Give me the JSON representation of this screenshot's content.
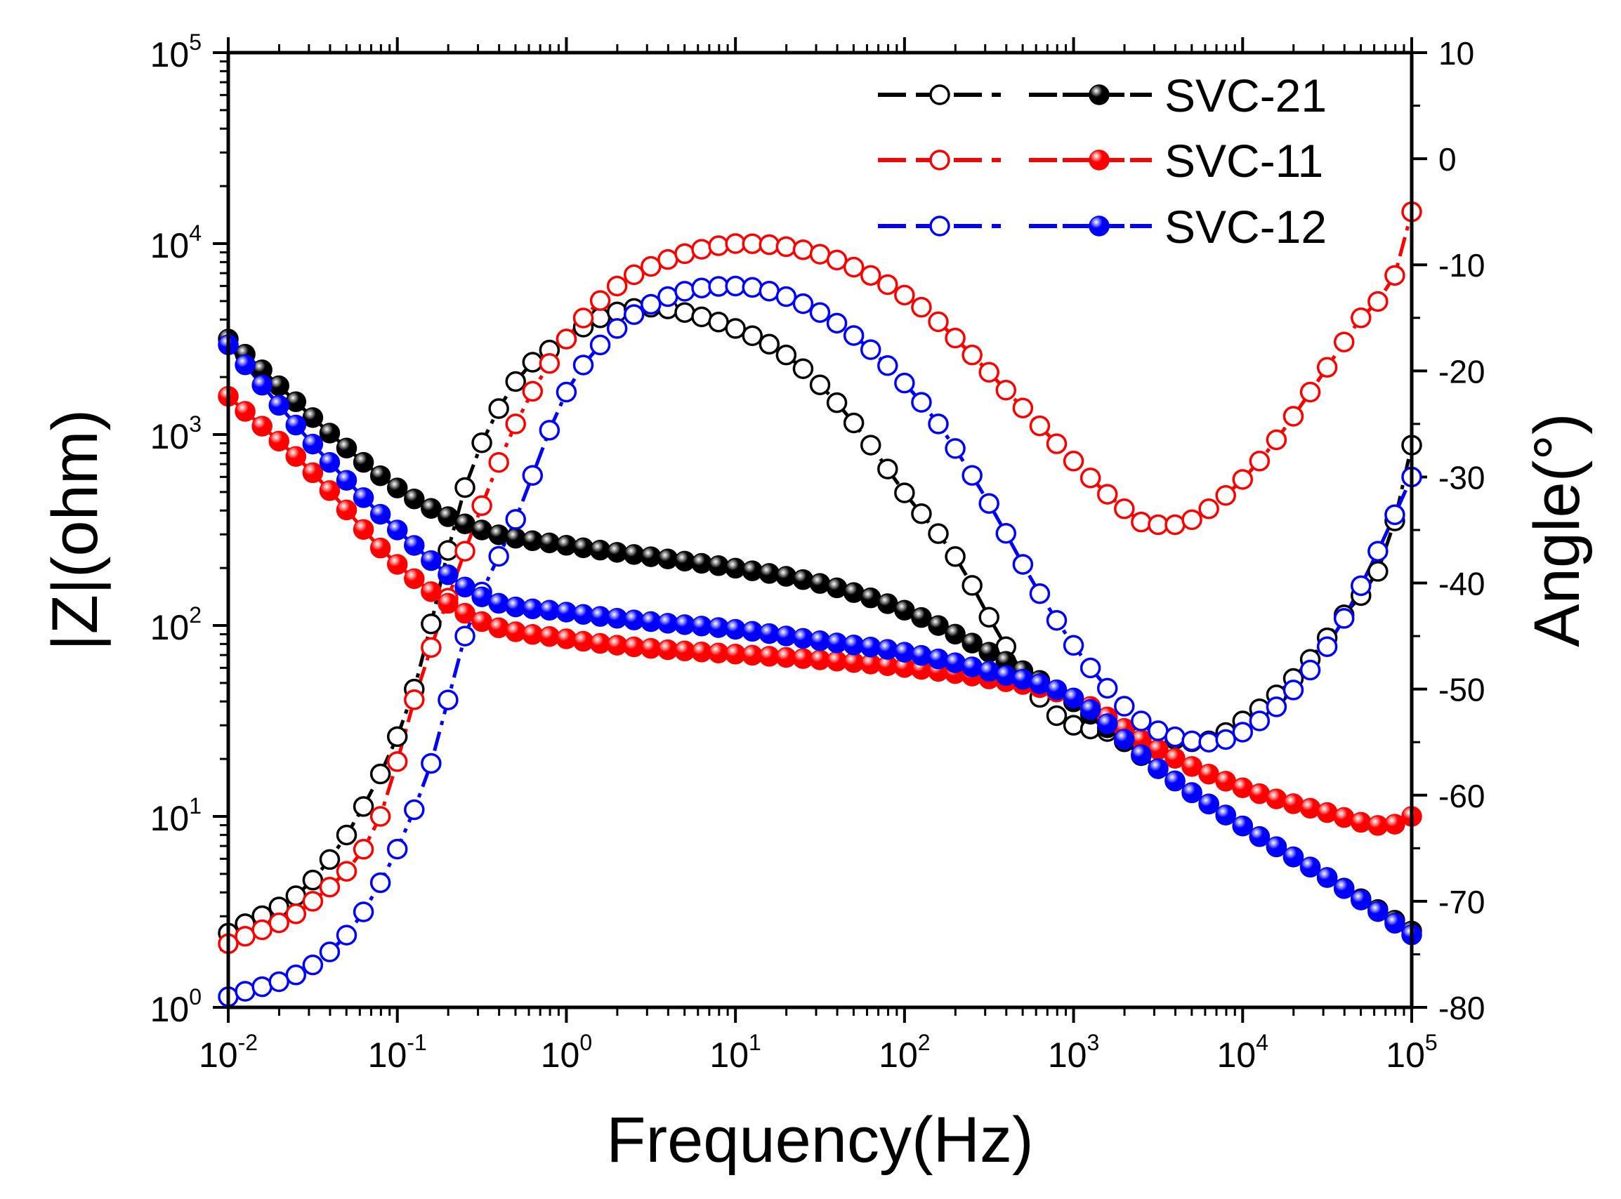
{
  "chart_data": {
    "type": "line",
    "title": "",
    "xlabel": "Frequency(Hz)",
    "ylabel_left": "|Z|(ohm)",
    "ylabel_right": "Angle(°)",
    "x_scale": "log",
    "y_left_scale": "log",
    "xlim": [
      0.01,
      100000
    ],
    "ylim_left": [
      1,
      100000
    ],
    "ylim_right": [
      -80,
      10
    ],
    "x_ticks": [
      {
        "value": 0.01,
        "base": "10",
        "exp": "-2"
      },
      {
        "value": 0.1,
        "base": "10",
        "exp": "-1"
      },
      {
        "value": 1,
        "base": "10",
        "exp": "0"
      },
      {
        "value": 10,
        "base": "10",
        "exp": "1"
      },
      {
        "value": 100,
        "base": "10",
        "exp": "2"
      },
      {
        "value": 1000,
        "base": "10",
        "exp": "3"
      },
      {
        "value": 10000,
        "base": "10",
        "exp": "4"
      },
      {
        "value": 100000,
        "base": "10",
        "exp": "5"
      }
    ],
    "y_left_ticks": [
      {
        "value": 1,
        "base": "10",
        "exp": "0"
      },
      {
        "value": 10,
        "base": "10",
        "exp": "1"
      },
      {
        "value": 100,
        "base": "10",
        "exp": "2"
      },
      {
        "value": 1000,
        "base": "10",
        "exp": "3"
      },
      {
        "value": 10000,
        "base": "10",
        "exp": "4"
      },
      {
        "value": 100000,
        "base": "10",
        "exp": "5"
      }
    ],
    "y_right_ticks": [
      "10",
      "0",
      "-10",
      "-20",
      "-30",
      "-40",
      "-50",
      "-60",
      "-70",
      "-80"
    ],
    "legend_position": "top-right",
    "series": [
      {
        "name": "SVC-21",
        "color": "#000000",
        "modulus": {
          "logf": [
            -2,
            -1,
            -0.5,
            0,
            0.5,
            1,
            1.5,
            2,
            2.5,
            3,
            3.5,
            4,
            4.5,
            5
          ],
          "logz": [
            3.5,
            2.72,
            2.5,
            2.42,
            2.36,
            2.3,
            2.22,
            2.08,
            1.86,
            1.6,
            1.25,
            0.95,
            0.68,
            0.4
          ]
        },
        "phase": {
          "logf": [
            -2,
            -1.5,
            -1.1,
            -0.9,
            -0.6,
            -0.3,
            0,
            0.2,
            0.5,
            0.7,
            1,
            1.3,
            1.6,
            1.8,
            2,
            2.3,
            2.6,
            2.9,
            3.2,
            3.5,
            3.75,
            4,
            4.3,
            4.6,
            4.85,
            5
          ],
          "deg": [
            -73,
            -68,
            -58,
            -50,
            -31,
            -21,
            -17,
            -15,
            -14,
            -14.5,
            -16,
            -18.5,
            -23,
            -27,
            -31.5,
            -37.5,
            -46,
            -52.5,
            -54,
            -54.5,
            -55,
            -53,
            -49,
            -43,
            -37,
            -27
          ]
        }
      },
      {
        "name": "SVC-11",
        "color": "#ff0000",
        "modulus": {
          "logf": [
            -2,
            -1.5,
            -1,
            -0.5,
            0,
            0.5,
            1,
            1.5,
            2,
            2.5,
            3,
            3.5,
            4,
            4.5,
            4.85,
            5
          ],
          "logz": [
            3.2,
            2.8,
            2.32,
            2.02,
            1.93,
            1.88,
            1.85,
            1.82,
            1.78,
            1.72,
            1.62,
            1.35,
            1.15,
            1.02,
            0.95,
            1.0
          ]
        },
        "phase": {
          "logf": [
            -2,
            -1.5,
            -1.1,
            -0.9,
            -0.6,
            -0.3,
            0,
            0.3,
            0.6,
            0.9,
            1,
            1.2,
            1.5,
            1.8,
            2.1,
            2.4,
            2.7,
            3.0,
            3.3,
            3.45,
            3.6,
            3.8,
            4.1,
            4.4,
            4.7,
            4.9,
            5
          ],
          "deg": [
            -74,
            -70,
            -62,
            -51,
            -37,
            -25,
            -17,
            -12,
            -9.5,
            -8.2,
            -8,
            -8.1,
            -9,
            -11,
            -14,
            -18.5,
            -23.5,
            -28.5,
            -33,
            -34.5,
            -34.5,
            -33,
            -28.5,
            -22,
            -15,
            -11,
            -5
          ]
        }
      },
      {
        "name": "SVC-12",
        "color": "#0000ff",
        "modulus": {
          "logf": [
            -2,
            -1.5,
            -1,
            -0.5,
            0,
            0.5,
            1,
            1.5,
            2,
            2.5,
            3,
            3.5,
            4,
            4.5,
            5
          ],
          "logz": [
            3.47,
            2.95,
            2.5,
            2.15,
            2.07,
            2.02,
            1.98,
            1.92,
            1.86,
            1.76,
            1.62,
            1.25,
            0.95,
            0.68,
            0.38
          ]
        },
        "phase": {
          "logf": [
            -2,
            -1.5,
            -1.2,
            -0.8,
            -0.6,
            -0.3,
            0,
            0.3,
            0.6,
            1,
            1.3,
            1.6,
            1.9,
            2.2,
            2.5,
            2.8,
            3.1,
            3.4,
            3.6,
            3.8,
            4.1,
            4.5,
            4.8,
            5
          ],
          "deg": [
            -79,
            -76,
            -71,
            -57,
            -45,
            -34,
            -22,
            -16,
            -13,
            -12,
            -13,
            -15.5,
            -19.5,
            -25,
            -32.5,
            -41,
            -48,
            -53,
            -54.5,
            -55,
            -53,
            -46,
            -37,
            -30
          ]
        }
      }
    ]
  }
}
